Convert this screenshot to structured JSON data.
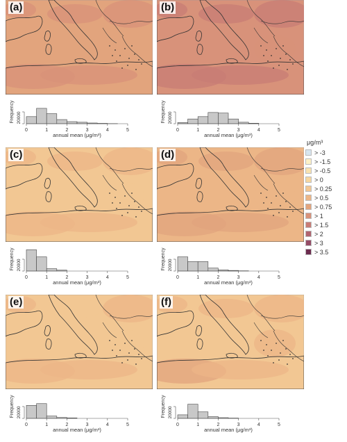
{
  "panels": [
    {
      "label": "(a)",
      "tone": 1.25,
      "hist": [
        12000,
        26000,
        17000,
        7000,
        3500,
        2500,
        1200,
        600,
        200,
        0
      ]
    },
    {
      "label": "(b)",
      "tone": 1.7,
      "hist": [
        2000,
        8000,
        12000,
        19000,
        18000,
        8000,
        2500,
        800,
        0,
        0
      ]
    },
    {
      "label": "(c)",
      "tone": 0.4,
      "hist": [
        36000,
        24000,
        4000,
        1500,
        0,
        0,
        0,
        0,
        0,
        0
      ]
    },
    {
      "label": "(d)",
      "tone": 0.85,
      "hist": [
        24000,
        16000,
        16000,
        5000,
        2000,
        1000,
        400,
        0,
        0,
        0
      ]
    },
    {
      "label": "(e)",
      "tone": 0.3,
      "hist": [
        22000,
        25000,
        4000,
        1500,
        800,
        0,
        0,
        0,
        0,
        0
      ]
    },
    {
      "label": "(f)",
      "tone": 0.55,
      "hist": [
        6000,
        24000,
        11000,
        3000,
        1200,
        500,
        0,
        0,
        0,
        0
      ]
    }
  ],
  "histogram": {
    "xlabel": "annual mean (μg/m³)",
    "ylabel": "Frequency",
    "ytick": "20000",
    "ytick_value": 20000,
    "ymax": 40000,
    "xticks": [
      "0",
      "1",
      "2",
      "3",
      "4",
      "5"
    ],
    "bin_width": 0.5,
    "bar_color": "#c8c8c8"
  },
  "legend": {
    "title": "μg/m³",
    "items": [
      {
        "label": "> -3",
        "color": "#d8e6f0"
      },
      {
        "label": "> -1.5",
        "color": "#fdf1c8"
      },
      {
        "label": "> -0.5",
        "color": "#f9e3b0"
      },
      {
        "label": "> 0",
        "color": "#f6d7a0"
      },
      {
        "label": "> 0.25",
        "color": "#f2c793"
      },
      {
        "label": "> 0.5",
        "color": "#ecb687"
      },
      {
        "label": "> 0.75",
        "color": "#e2a47d"
      },
      {
        "label": "> 1",
        "color": "#d8927a"
      },
      {
        "label": "> 1.5",
        "color": "#c87c76"
      },
      {
        "label": "> 2",
        "color": "#b06470"
      },
      {
        "label": "> 3",
        "color": "#944c66"
      },
      {
        "label": "> 3.5",
        "color": "#6c2c4f"
      }
    ]
  }
}
